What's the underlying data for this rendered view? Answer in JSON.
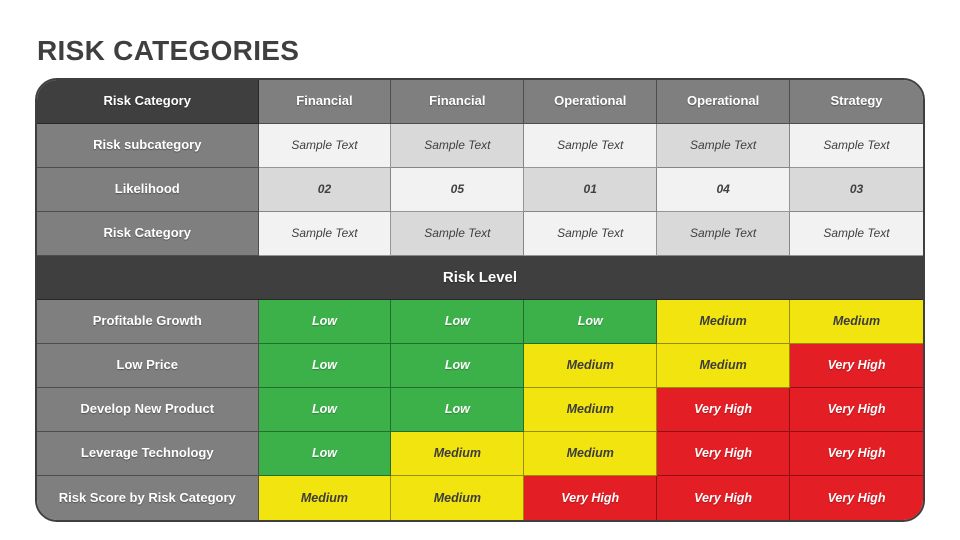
{
  "slide": {
    "title": "RISK CATEGORIES"
  },
  "palette": {
    "dark": "#3F3F3F",
    "gray": "#7F7F7F",
    "shade_a": "#F2F2F2",
    "shade_b": "#D9D9D9",
    "green": "#3CB14A",
    "yellow": "#F2E50F",
    "red": "#E31E24"
  },
  "table": {
    "header": {
      "label": "Risk Category",
      "columns": [
        "Financial",
        "Financial",
        "Operational",
        "Operational",
        "Strategy"
      ]
    },
    "info_rows": [
      {
        "label": "Risk subcategory",
        "cells": [
          "Sample Text",
          "Sample Text",
          "Sample Text",
          "Sample Text",
          "Sample Text"
        ]
      },
      {
        "label": "Likelihood",
        "cells": [
          "02",
          "05",
          "01",
          "04",
          "03"
        ]
      },
      {
        "label": "Risk Category",
        "cells": [
          "Sample Text",
          "Sample Text",
          "Sample Text",
          "Sample Text",
          "Sample Text"
        ]
      }
    ],
    "section_header": "Risk Level",
    "risk_rows": [
      {
        "label": "Profitable Growth",
        "cells": [
          {
            "text": "Low",
            "level": "green"
          },
          {
            "text": "Low",
            "level": "green"
          },
          {
            "text": "Low",
            "level": "green"
          },
          {
            "text": "Medium",
            "level": "yellow"
          },
          {
            "text": "Medium",
            "level": "yellow"
          }
        ]
      },
      {
        "label": "Low Price",
        "cells": [
          {
            "text": "Low",
            "level": "green"
          },
          {
            "text": "Low",
            "level": "green"
          },
          {
            "text": "Medium",
            "level": "yellow"
          },
          {
            "text": "Medium",
            "level": "yellow"
          },
          {
            "text": "Very High",
            "level": "red"
          }
        ]
      },
      {
        "label": "Develop New Product",
        "cells": [
          {
            "text": "Low",
            "level": "green"
          },
          {
            "text": "Low",
            "level": "green"
          },
          {
            "text": "Medium",
            "level": "yellow"
          },
          {
            "text": "Very High",
            "level": "red"
          },
          {
            "text": "Very High",
            "level": "red"
          }
        ]
      },
      {
        "label": "Leverage Technology",
        "cells": [
          {
            "text": "Low",
            "level": "green"
          },
          {
            "text": "Medium",
            "level": "yellow"
          },
          {
            "text": "Medium",
            "level": "yellow"
          },
          {
            "text": "Very High",
            "level": "red"
          },
          {
            "text": "Very High",
            "level": "red"
          }
        ]
      },
      {
        "label": "Risk Score by Risk Category",
        "cells": [
          {
            "text": "Medium",
            "level": "yellow"
          },
          {
            "text": "Medium",
            "level": "yellow"
          },
          {
            "text": "Very High",
            "level": "red"
          },
          {
            "text": "Very High",
            "level": "red"
          },
          {
            "text": "Very High",
            "level": "red"
          }
        ]
      }
    ]
  }
}
